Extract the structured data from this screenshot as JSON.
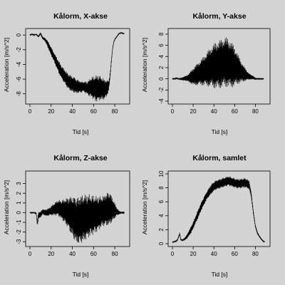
{
  "chart_data": [
    {
      "type": "line",
      "title": "Kålorm, X-akse",
      "xlabel": "Tid [s]",
      "ylabel": "Acceleration [m/s^2]",
      "xlim": [
        0,
        90
      ],
      "ylim": [
        -9,
        0.5
      ],
      "xticks": [
        0,
        20,
        40,
        60,
        80
      ],
      "yticks": [
        0,
        -2,
        -4,
        -6,
        -8
      ],
      "series": [
        {
          "x": [
            0,
            2,
            4,
            6,
            8,
            10,
            12,
            14,
            16,
            18,
            20,
            22,
            24,
            26,
            28,
            30,
            32,
            34,
            36,
            38,
            40,
            42,
            44,
            46,
            48,
            50,
            52,
            54,
            56,
            58,
            60,
            62,
            64,
            66,
            68,
            70,
            72,
            74,
            75,
            76,
            77,
            78,
            79,
            80,
            82,
            84,
            86,
            88,
            89
          ],
          "y": [
            0.0,
            0.1,
            0.0,
            0.1,
            -0.2,
            0.2,
            -0.4,
            -0.6,
            -1.0,
            -1.6,
            -2.2,
            -2.8,
            -3.4,
            -4.0,
            -4.6,
            -5.1,
            -5.5,
            -5.9,
            -6.3,
            -6.5,
            -6.7,
            -6.8,
            -7.0,
            -7.0,
            -7.1,
            -7.0,
            -7.1,
            -7.2,
            -7.2,
            -7.1,
            -7.2,
            -7.3,
            -7.2,
            -7.2,
            -7.3,
            -7.4,
            -7.3,
            -7.0,
            -6.2,
            -4.8,
            -3.2,
            -1.8,
            -1.0,
            -0.6,
            -0.2,
            0.2,
            0.3,
            0.2,
            0.2
          ],
          "oscillation_amplitude": [
            0.05,
            0.05,
            0.05,
            0.05,
            0.1,
            0.15,
            0.2,
            0.2,
            0.4,
            0.5,
            0.6,
            0.6,
            0.7,
            0.8,
            0.9,
            0.9,
            1.0,
            1.0,
            1.1,
            1.1,
            1.1,
            1.1,
            1.0,
            0.9,
            0.8,
            0.7,
            0.8,
            0.9,
            1.2,
            1.4,
            1.6,
            1.8,
            1.8,
            1.7,
            1.6,
            1.4,
            1.2,
            0.8,
            0.5,
            0.3,
            0.2,
            0.1,
            0.1,
            0.05,
            0.05,
            0.05,
            0.05,
            0.05,
            0.05
          ]
        }
      ]
    },
    {
      "type": "line",
      "title": "Kålorm, Y-akse",
      "xlabel": "Tid [s]",
      "ylabel": "Acceleration [m/s^2]",
      "xlim": [
        0,
        90
      ],
      "ylim": [
        -4,
        8.5
      ],
      "xticks": [
        0,
        20,
        40,
        60,
        80
      ],
      "yticks": [
        -4,
        -2,
        0,
        2,
        4,
        6,
        8
      ],
      "series": [
        {
          "x": [
            0,
            2,
            4,
            6,
            8,
            10,
            12,
            14,
            16,
            18,
            20,
            22,
            24,
            26,
            28,
            30,
            32,
            34,
            36,
            38,
            40,
            42,
            44,
            46,
            48,
            50,
            52,
            54,
            56,
            58,
            60,
            62,
            64,
            66,
            68,
            70,
            72,
            74,
            76,
            78,
            80,
            82,
            84,
            86,
            88
          ],
          "y": [
            0.0,
            0.0,
            0.1,
            0.0,
            0.0,
            0.0,
            0.1,
            0.1,
            0.2,
            0.3,
            0.4,
            0.6,
            0.8,
            1.0,
            1.2,
            1.4,
            1.6,
            1.8,
            2.0,
            2.2,
            2.3,
            2.4,
            2.5,
            2.6,
            2.8,
            3.0,
            3.0,
            2.8,
            2.6,
            2.4,
            2.2,
            1.9,
            1.6,
            1.3,
            1.0,
            0.8,
            0.6,
            0.4,
            0.3,
            0.2,
            0.0,
            0.0,
            0.0,
            0.0,
            0.0
          ],
          "oscillation_amplitude": [
            0.1,
            0.1,
            0.1,
            0.1,
            0.2,
            0.3,
            0.4,
            0.6,
            0.8,
            1.2,
            1.6,
            1.8,
            2.0,
            2.2,
            2.4,
            2.6,
            2.9,
            3.2,
            3.5,
            3.8,
            4.0,
            4.2,
            4.3,
            4.4,
            4.5,
            4.5,
            4.5,
            4.4,
            4.2,
            4.0,
            3.6,
            3.0,
            2.5,
            2.0,
            1.6,
            1.2,
            0.9,
            0.6,
            0.4,
            0.3,
            0.2,
            0.1,
            0.1,
            0.1,
            0.1
          ]
        }
      ]
    },
    {
      "type": "line",
      "title": "Kålorm, Z-akse",
      "xlabel": "Tid [s]",
      "ylabel": "Acceleration [m/s^2]",
      "xlim": [
        0,
        90
      ],
      "ylim": [
        -3.2,
        4
      ],
      "xticks": [
        0,
        20,
        40,
        60,
        80
      ],
      "yticks": [
        -3,
        -2,
        -1,
        0,
        1,
        2,
        3
      ],
      "series": [
        {
          "x": [
            0,
            2,
            4,
            6,
            7,
            8,
            10,
            12,
            14,
            16,
            18,
            20,
            22,
            24,
            26,
            28,
            30,
            32,
            34,
            36,
            38,
            40,
            42,
            44,
            46,
            48,
            50,
            52,
            54,
            56,
            58,
            60,
            62,
            64,
            66,
            68,
            70,
            72,
            74,
            76,
            78,
            80,
            82,
            84,
            86,
            88,
            89
          ],
          "y": [
            0.0,
            0.0,
            0.0,
            -0.1,
            -1.2,
            -0.3,
            -0.2,
            0.1,
            0.0,
            0.0,
            0.1,
            0.2,
            0.3,
            0.4,
            0.5,
            0.4,
            0.3,
            0.2,
            0.1,
            0.0,
            -0.2,
            -0.4,
            -0.6,
            -0.8,
            -0.8,
            -0.7,
            -0.6,
            -0.5,
            -0.4,
            -0.3,
            -0.3,
            -0.2,
            -0.2,
            -0.1,
            0.0,
            0.1,
            0.2,
            0.3,
            0.4,
            0.4,
            0.3,
            0.2,
            0.1,
            0.0,
            0.0,
            0.0,
            0.0
          ],
          "oscillation_amplitude": [
            0.05,
            0.05,
            0.05,
            0.1,
            0.2,
            0.4,
            0.3,
            0.3,
            0.3,
            0.4,
            0.4,
            0.5,
            0.6,
            0.7,
            0.8,
            0.9,
            1.0,
            1.2,
            1.4,
            1.6,
            1.9,
            2.1,
            2.3,
            2.4,
            2.5,
            2.5,
            2.5,
            2.4,
            2.3,
            2.2,
            2.1,
            2.0,
            1.9,
            1.8,
            1.7,
            1.6,
            1.6,
            1.7,
            1.8,
            1.6,
            1.2,
            0.8,
            0.4,
            0.2,
            0.1,
            0.1,
            0.1
          ]
        }
      ]
    },
    {
      "type": "line",
      "title": "Kålorm, samlet",
      "xlabel": "Tid [s]",
      "ylabel": "Acceleration [m/s^2]",
      "xlim": [
        0,
        90
      ],
      "ylim": [
        0,
        10
      ],
      "xticks": [
        0,
        20,
        40,
        60,
        80
      ],
      "yticks": [
        0,
        2,
        4,
        6,
        8,
        10
      ],
      "series": [
        {
          "x": [
            0,
            2,
            4,
            5,
            6,
            7,
            8,
            10,
            12,
            14,
            16,
            18,
            20,
            22,
            24,
            26,
            28,
            30,
            32,
            34,
            36,
            38,
            40,
            42,
            44,
            46,
            48,
            50,
            52,
            54,
            56,
            58,
            60,
            62,
            64,
            66,
            68,
            70,
            72,
            74,
            76,
            78,
            80,
            82,
            84,
            86,
            88,
            89
          ],
          "y": [
            0.2,
            0.3,
            0.4,
            0.6,
            1.0,
            1.4,
            0.6,
            0.5,
            0.7,
            1.0,
            1.5,
            2.0,
            2.6,
            3.3,
            4.0,
            4.7,
            5.4,
            6.0,
            6.6,
            7.1,
            7.5,
            7.9,
            8.2,
            8.4,
            8.5,
            8.6,
            8.7,
            8.8,
            8.9,
            9.0,
            8.9,
            8.8,
            8.7,
            8.6,
            8.6,
            8.6,
            8.7,
            8.7,
            8.6,
            8.4,
            7.0,
            4.5,
            2.5,
            1.5,
            1.0,
            0.6,
            0.3,
            0.3
          ],
          "oscillation_amplitude": [
            0.05,
            0.05,
            0.1,
            0.1,
            0.1,
            0.2,
            0.1,
            0.1,
            0.2,
            0.3,
            0.4,
            0.5,
            0.5,
            0.5,
            0.6,
            0.6,
            0.6,
            0.6,
            0.6,
            0.6,
            0.7,
            0.7,
            0.7,
            0.7,
            0.7,
            0.7,
            0.7,
            0.7,
            0.7,
            0.7,
            0.7,
            0.7,
            0.7,
            0.7,
            0.7,
            0.7,
            0.7,
            0.7,
            0.7,
            0.6,
            0.4,
            0.3,
            0.2,
            0.2,
            0.1,
            0.1,
            0.05,
            0.05
          ]
        }
      ]
    }
  ]
}
